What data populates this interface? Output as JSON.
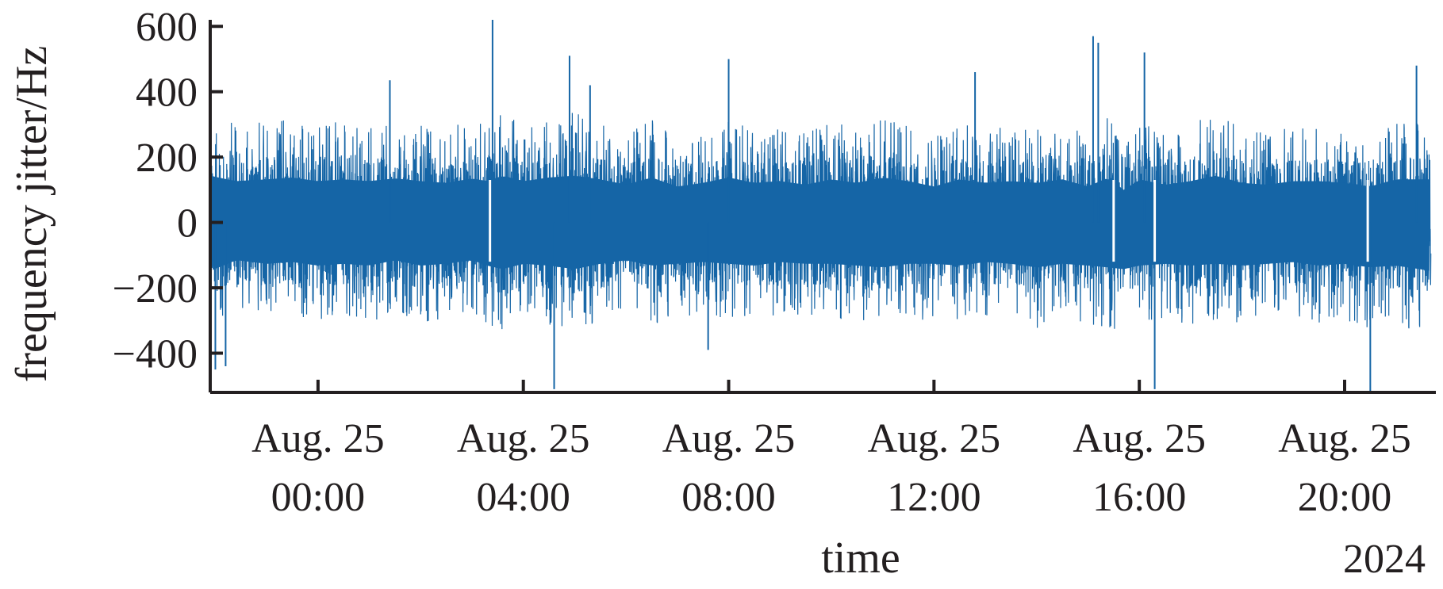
{
  "chart_data": {
    "type": "line",
    "title": "",
    "xlabel": "time",
    "ylabel": "frequency jitter/Hz",
    "ylim": [
      -520,
      620
    ],
    "yticks": [
      600,
      400,
      200,
      0,
      -200,
      -400
    ],
    "ytick_labels": [
      "600",
      "400",
      "200",
      "0",
      "−200",
      "−400"
    ],
    "xlim_hours": [
      -2.1,
      21.7
    ],
    "xticks_hours": [
      0,
      4,
      8,
      12,
      16,
      20
    ],
    "xtick_labels": [
      [
        "Aug. 25",
        "00:00"
      ],
      [
        "Aug. 25",
        "04:00"
      ],
      [
        "Aug. 25",
        "08:00"
      ],
      [
        "Aug. 25",
        "12:00"
      ],
      [
        "Aug. 25",
        "16:00"
      ],
      [
        "Aug. 25",
        "20:00"
      ]
    ],
    "xaxis_year_label": "2024",
    "grid": false,
    "legend": "none",
    "colors": {
      "series": "#1565a6",
      "axis": "#231f20"
    },
    "series": [
      {
        "name": "",
        "x_hours": [
          -2.1,
          -1.6,
          -1.0,
          -0.5,
          0.0,
          0.5,
          1.0,
          1.5,
          2.0,
          2.5,
          3.0,
          3.3,
          3.6,
          4.0,
          4.5,
          5.0,
          5.5,
          6.0,
          6.5,
          7.0,
          7.5,
          8.0,
          8.5,
          9.0,
          9.5,
          10.0,
          10.5,
          11.0,
          11.5,
          12.0,
          12.5,
          13.0,
          13.5,
          14.0,
          14.5,
          15.0,
          15.4,
          15.7,
          16.0,
          16.5,
          17.0,
          17.5,
          18.0,
          18.5,
          19.0,
          19.5,
          20.0,
          20.5,
          21.0,
          21.7
        ],
        "upper_envelope": [
          260,
          230,
          240,
          250,
          230,
          240,
          230,
          245,
          230,
          220,
          245,
          230,
          260,
          230,
          250,
          260,
          240,
          210,
          250,
          200,
          220,
          250,
          220,
          230,
          210,
          240,
          220,
          250,
          230,
          200,
          240,
          220,
          230,
          220,
          240,
          200,
          250,
          180,
          240,
          210,
          230,
          260,
          220,
          210,
          230,
          230,
          220,
          200,
          240,
          240
        ],
        "lower_envelope": [
          -270,
          -210,
          -230,
          -220,
          -240,
          -230,
          -240,
          -210,
          -240,
          -230,
          -210,
          -240,
          -260,
          -230,
          -240,
          -260,
          -230,
          -210,
          -240,
          -230,
          -220,
          -230,
          -240,
          -220,
          -230,
          -230,
          -240,
          -250,
          -230,
          -230,
          -240,
          -220,
          -230,
          -250,
          -230,
          -240,
          -250,
          -260,
          -240,
          -230,
          -240,
          -230,
          -240,
          -230,
          -220,
          -240,
          -230,
          -250,
          -240,
          -270
        ],
        "spikes": [
          {
            "x_hours": -2.0,
            "value": -450
          },
          {
            "x_hours": -1.8,
            "value": -440
          },
          {
            "x_hours": 1.4,
            "value": 435
          },
          {
            "x_hours": 3.4,
            "value": 620
          },
          {
            "x_hours": 4.6,
            "value": -510
          },
          {
            "x_hours": 4.9,
            "value": 510
          },
          {
            "x_hours": 5.3,
            "value": 420
          },
          {
            "x_hours": 7.6,
            "value": -390
          },
          {
            "x_hours": 8.0,
            "value": 500
          },
          {
            "x_hours": 12.8,
            "value": 460
          },
          {
            "x_hours": 15.1,
            "value": 570
          },
          {
            "x_hours": 15.2,
            "value": 550
          },
          {
            "x_hours": 16.1,
            "value": 520
          },
          {
            "x_hours": 16.3,
            "value": -510
          },
          {
            "x_hours": 20.5,
            "value": -520
          },
          {
            "x_hours": 21.4,
            "value": 480
          }
        ],
        "gaps_hours": [
          3.35,
          15.5,
          16.3,
          20.45
        ]
      }
    ]
  }
}
